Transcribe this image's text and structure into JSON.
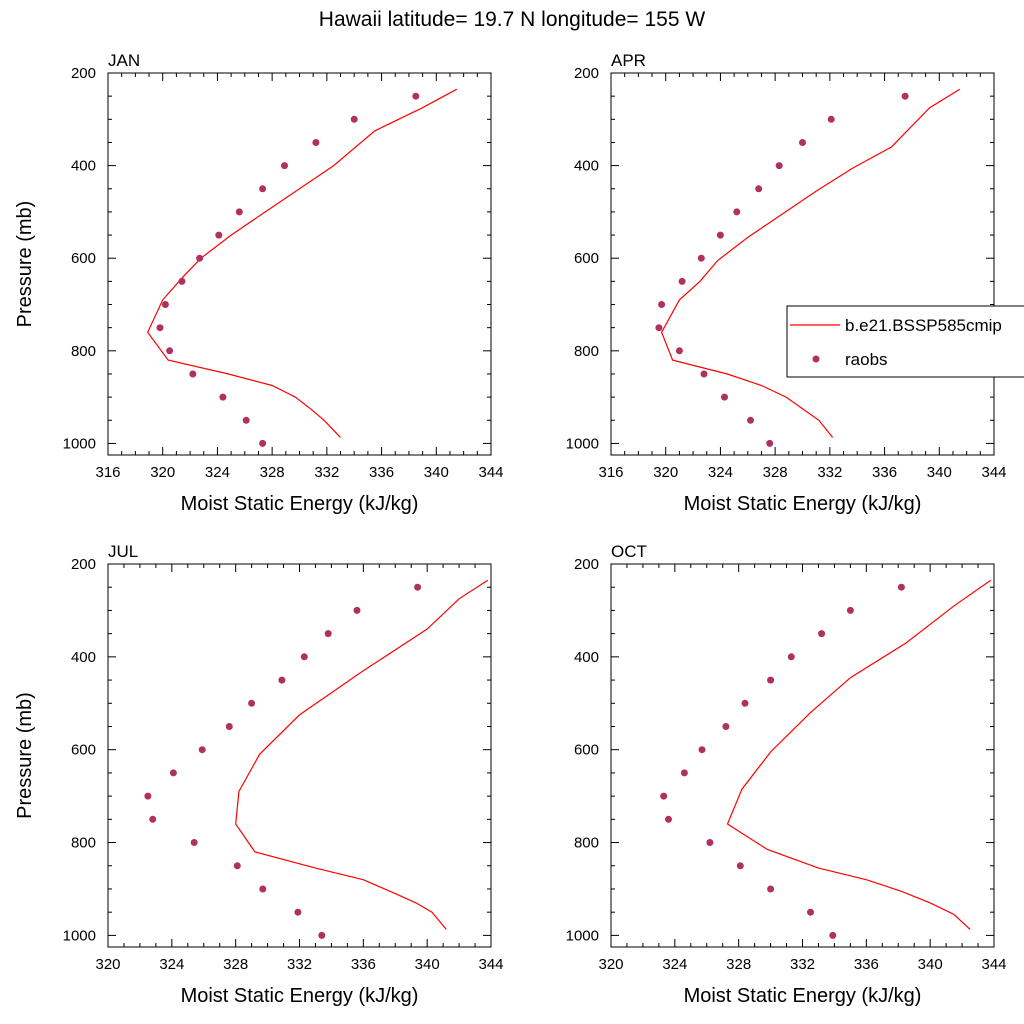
{
  "figure_title": "Hawaii  latitude= 19.7 N longitude= 155 W",
  "colors": {
    "model": "#ff0000",
    "obs": "#b03060"
  },
  "legend": {
    "position": "right of APR panel",
    "entries": [
      "b.e21.BSSP585cmip",
      "raobs"
    ]
  },
  "chart_data": [
    {
      "type": "line",
      "panel_label": "JAN",
      "xlabel": "Moist Static Energy (kJ/kg)",
      "ylabel": "Pressure (mb)",
      "xlim": [
        316,
        344
      ],
      "ylim": [
        1025,
        200
      ],
      "xticks": [
        316,
        320,
        324,
        328,
        332,
        336,
        340,
        344
      ],
      "yticks": [
        200,
        400,
        600,
        800,
        1000
      ],
      "grid": false,
      "series": [
        {
          "name": "b.e21.BSSP585cmip",
          "style": "line",
          "x": [
            333.0,
            331.8,
            330.8,
            329.7,
            328.0,
            324.8,
            320.4,
            318.9,
            320.0,
            321.5,
            322.8,
            325.0,
            327.5,
            330.0,
            332.5,
            335.5,
            339.0,
            341.5
          ],
          "y": [
            987,
            950,
            925,
            900,
            875,
            850,
            820,
            760,
            690,
            640,
            600,
            550,
            500,
            450,
            400,
            325,
            275,
            235
          ]
        },
        {
          "name": "raobs",
          "style": "markers",
          "x": [
            327.3,
            326.1,
            324.4,
            322.2,
            320.5,
            319.8,
            320.2,
            321.4,
            322.7,
            324.1,
            325.6,
            327.3,
            328.9,
            331.2,
            334.0,
            338.5
          ],
          "y": [
            1000,
            950,
            900,
            850,
            800,
            750,
            700,
            650,
            600,
            550,
            500,
            450,
            400,
            350,
            300,
            250
          ]
        }
      ]
    },
    {
      "type": "line",
      "panel_label": "APR",
      "xlabel": "Moist Static Energy (kJ/kg)",
      "ylabel": "",
      "xlim": [
        316,
        344
      ],
      "ylim": [
        1025,
        200
      ],
      "xticks": [
        316,
        320,
        324,
        328,
        332,
        336,
        340,
        344
      ],
      "yticks": [
        200,
        400,
        600,
        800,
        1000
      ],
      "grid": false,
      "series": [
        {
          "name": "b.e21.BSSP585cmip",
          "style": "line",
          "x": [
            332.2,
            331.2,
            330.0,
            328.8,
            327.0,
            324.5,
            320.5,
            319.7,
            321.0,
            322.5,
            323.8,
            326.0,
            328.5,
            331.0,
            333.7,
            336.5,
            339.3,
            341.5
          ],
          "y": [
            987,
            950,
            925,
            900,
            875,
            850,
            820,
            760,
            690,
            650,
            605,
            555,
            505,
            455,
            405,
            360,
            275,
            235
          ]
        },
        {
          "name": "raobs",
          "style": "markers",
          "x": [
            327.6,
            326.2,
            324.3,
            322.8,
            321.0,
            319.5,
            319.7,
            321.2,
            322.6,
            324.0,
            325.2,
            326.8,
            328.3,
            330.0,
            332.1,
            337.5
          ],
          "y": [
            1000,
            950,
            900,
            850,
            800,
            750,
            700,
            650,
            600,
            550,
            500,
            450,
            400,
            350,
            300,
            250
          ]
        }
      ]
    },
    {
      "type": "line",
      "panel_label": "JUL",
      "xlabel": "Moist Static Energy (kJ/kg)",
      "ylabel": "Pressure (mb)",
      "xlim": [
        320,
        344
      ],
      "ylim": [
        1025,
        200
      ],
      "xticks": [
        320,
        324,
        328,
        332,
        336,
        340,
        344
      ],
      "yticks": [
        200,
        400,
        600,
        800,
        1000
      ],
      "grid": false,
      "series": [
        {
          "name": "b.e21.BSSP585cmip",
          "style": "line",
          "x": [
            341.2,
            340.3,
            339.3,
            338.0,
            336.0,
            333.0,
            329.2,
            328.0,
            328.2,
            329.5,
            332.0,
            336.0,
            340.0,
            342.0,
            343.8
          ],
          "y": [
            987,
            950,
            930,
            910,
            880,
            855,
            820,
            760,
            690,
            610,
            525,
            430,
            340,
            275,
            235
          ]
        },
        {
          "name": "raobs",
          "style": "markers",
          "x": [
            333.4,
            331.9,
            329.7,
            328.1,
            325.4,
            322.8,
            322.5,
            324.1,
            325.9,
            327.6,
            329.0,
            330.9,
            332.3,
            333.8,
            335.6,
            339.4
          ],
          "y": [
            1000,
            950,
            900,
            850,
            800,
            750,
            700,
            650,
            600,
            550,
            500,
            450,
            400,
            350,
            300,
            250
          ]
        }
      ]
    },
    {
      "type": "line",
      "panel_label": "OCT",
      "xlabel": "Moist Static Energy (kJ/kg)",
      "ylabel": "",
      "xlim": [
        320,
        344
      ],
      "ylim": [
        1025,
        200
      ],
      "xticks": [
        320,
        324,
        328,
        332,
        336,
        340,
        344
      ],
      "yticks": [
        200,
        400,
        600,
        800,
        1000
      ],
      "grid": false,
      "series": [
        {
          "name": "b.e21.BSSP585cmip",
          "style": "line",
          "x": [
            342.5,
            341.5,
            340.0,
            338.2,
            336.0,
            333.0,
            329.8,
            327.3,
            328.2,
            330.0,
            332.5,
            335.0,
            338.5,
            341.5,
            343.8
          ],
          "y": [
            987,
            955,
            930,
            905,
            880,
            855,
            815,
            760,
            685,
            605,
            520,
            445,
            370,
            290,
            235
          ]
        },
        {
          "name": "raobs",
          "style": "markers",
          "x": [
            333.9,
            332.5,
            330.0,
            328.1,
            326.2,
            323.6,
            323.3,
            324.6,
            325.7,
            327.2,
            328.4,
            330.0,
            331.3,
            333.2,
            335.0,
            338.2
          ],
          "y": [
            1000,
            950,
            900,
            850,
            800,
            750,
            700,
            650,
            600,
            550,
            500,
            450,
            400,
            350,
            300,
            250
          ]
        }
      ]
    }
  ]
}
